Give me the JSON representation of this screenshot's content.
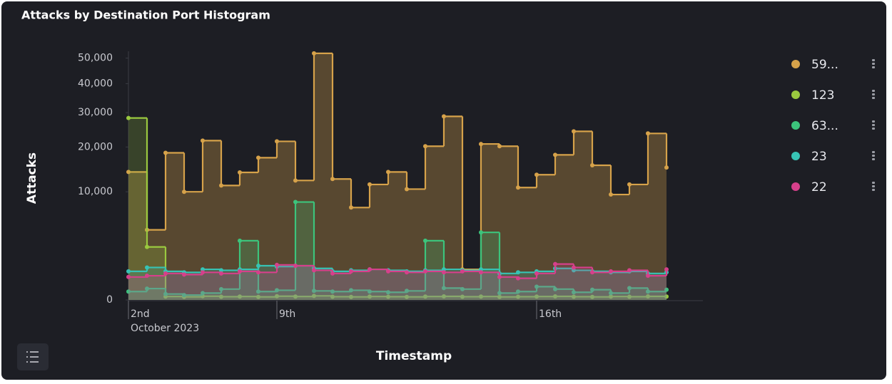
{
  "chart_data": {
    "type": "step-area",
    "title": "Attacks by Destination Port Histogram",
    "y_label": "Attacks",
    "x_label": "Timestamp",
    "x_sublabel": "October 2023",
    "scale": "sqrt",
    "categories": [
      "2nd",
      null,
      null,
      null,
      null,
      null,
      null,
      null,
      "9th",
      null,
      null,
      null,
      null,
      null,
      null,
      null,
      null,
      null,
      null,
      null,
      null,
      null,
      "16th",
      null,
      null,
      null,
      null,
      null,
      null,
      null
    ],
    "ylim": [
      0,
      55000
    ],
    "yticks": [
      0,
      {
        "value": 10000,
        "label": "10,000"
      },
      {
        "value": 20000,
        "label": "20,000"
      },
      {
        "value": 30000,
        "label": "30,000"
      },
      {
        "value": 40000,
        "label": "40,000"
      },
      {
        "value": 50000,
        "label": "50,000"
      }
    ],
    "series": [
      {
        "name": "59...",
        "color": "#d6a24a",
        "values": [
          14000,
          4200,
          18500,
          10000,
          21700,
          11200,
          13900,
          17300,
          21500,
          12200,
          52000,
          12500,
          7300,
          11400,
          14000,
          10500,
          20200,
          28800,
          800,
          20800,
          20200,
          10800,
          13400,
          18000,
          24300,
          15500,
          9500,
          11400,
          23700,
          15000
        ]
      },
      {
        "name": "123",
        "color": "#9ac93f",
        "values": [
          28300,
          2400,
          10,
          8,
          12,
          9,
          10,
          8,
          12,
          10,
          14,
          9,
          8,
          10,
          9,
          8,
          10,
          11,
          9,
          10,
          8,
          9,
          10,
          11,
          9,
          8,
          10,
          9,
          11,
          10
        ]
      },
      {
        "name": "63...",
        "color": "#3cc47c",
        "values": [
          60,
          110,
          30,
          20,
          40,
          100,
          3000,
          60,
          80,
          8200,
          70,
          60,
          80,
          60,
          50,
          70,
          3000,
          120,
          100,
          3900,
          40,
          60,
          150,
          100,
          50,
          90,
          40,
          120,
          60,
          90
        ]
      },
      {
        "name": "23",
        "color": "#37c3b4",
        "values": [
          700,
          900,
          700,
          650,
          800,
          750,
          800,
          1000,
          950,
          1000,
          850,
          700,
          750,
          800,
          750,
          700,
          750,
          800,
          750,
          800,
          600,
          650,
          700,
          850,
          750,
          700,
          650,
          700,
          600,
          650
        ]
      },
      {
        "name": "22",
        "color": "#d6408b",
        "values": [
          450,
          500,
          600,
          550,
          650,
          600,
          700,
          650,
          1050,
          1000,
          750,
          600,
          700,
          800,
          700,
          650,
          700,
          650,
          700,
          650,
          450,
          400,
          600,
          1100,
          900,
          650,
          700,
          750,
          500,
          800
        ]
      }
    ],
    "legend": "right"
  }
}
